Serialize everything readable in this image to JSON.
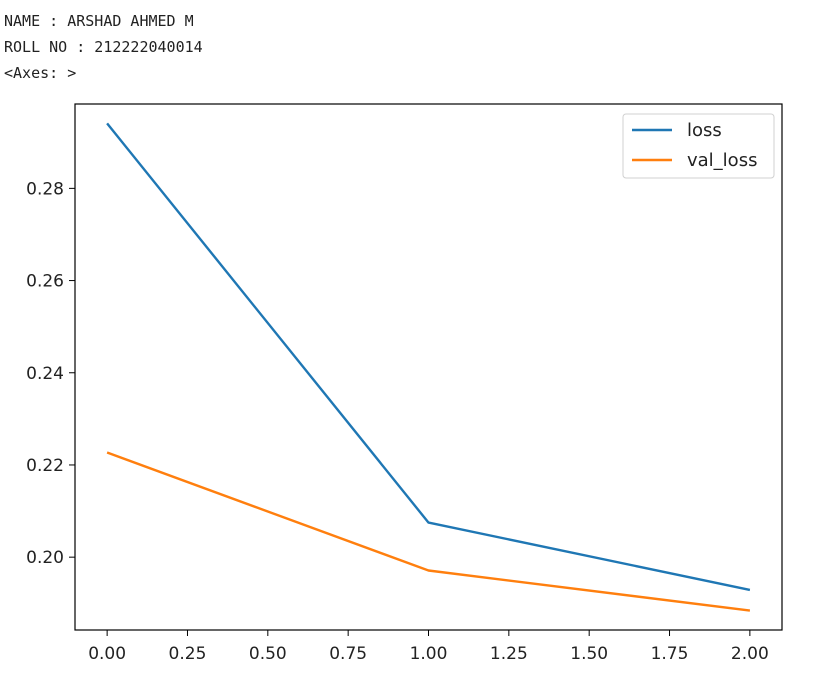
{
  "output": {
    "lines": [
      "NAME : ARSHAD AHMED M",
      "ROLL NO : 212222040014",
      "<Axes: >"
    ]
  },
  "chart_data": {
    "type": "line",
    "x": [
      0,
      1,
      2
    ],
    "series": [
      {
        "name": "loss",
        "values": [
          0.2941,
          0.2075,
          0.1929
        ],
        "color": "#1f77b4"
      },
      {
        "name": "val_loss",
        "values": [
          0.2227,
          0.1971,
          0.1884
        ],
        "color": "#ff7f0e"
      }
    ],
    "title": "",
    "xlabel": "",
    "ylabel": "",
    "xlim": [
      -0.1,
      2.1
    ],
    "ylim": [
      0.1842,
      0.2983
    ],
    "x_ticks": [
      "0.00",
      "0.25",
      "0.50",
      "0.75",
      "1.00",
      "1.25",
      "1.50",
      "1.75",
      "2.00"
    ],
    "y_ticks": [
      "0.20",
      "0.22",
      "0.24",
      "0.26",
      "0.28"
    ],
    "grid": false,
    "legend": "top-right"
  }
}
